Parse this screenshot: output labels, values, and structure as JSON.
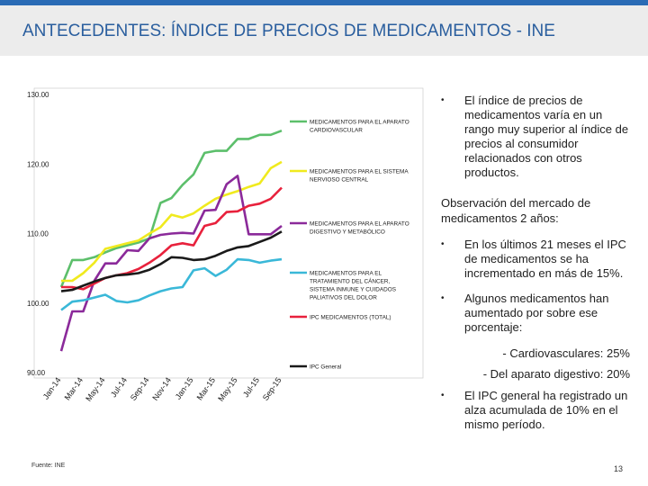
{
  "header": {
    "title": "ANTECEDENTES: ÍNDICE DE PRECIOS DE MEDICAMENTOS - INE"
  },
  "source": "Fuente: INE",
  "page_number": "13",
  "colors": {
    "header_bar": "#2a6bb5",
    "title": "#2a5e9e"
  },
  "right_panel": {
    "bullet_symbol": "•",
    "bullet1": "El índice de precios de medicamentos varía en un rango muy superior al índice de precios al consumidor relacionados con otros productos.",
    "observation": "Observación del mercado de medicamentos 2 años:",
    "bullet2": "En los últimos 21 meses el IPC de medicamentos se ha incrementado en más de 15%.",
    "bullet3": "Algunos medicamentos han aumentado por sobre ese porcentaje:",
    "sub1": "- Cardiovasculares: 25%",
    "sub2": "- Del aparato digestivo: 20%",
    "bullet4": "El IPC general ha registrado un alza acumulada de 10% en el mismo período."
  },
  "chart_data": {
    "type": "line",
    "x": [
      "Jan-14",
      "Feb-14",
      "Mar-14",
      "Apr-14",
      "May-14",
      "Jun-14",
      "Jul-14",
      "Aug-14",
      "Sep-14",
      "Oct-14",
      "Nov-14",
      "Dec-14",
      "Jan-15",
      "Feb-15",
      "Mar-15",
      "Apr-15",
      "May-15",
      "Jun-15",
      "Jul-15",
      "Aug-15",
      "Sep-15"
    ],
    "x_tick_labels": [
      "Jan-14",
      "Mar-14",
      "May-14",
      "Jul-14",
      "Sep-14",
      "Nov-14",
      "Jan-15",
      "Mar-15",
      "May-15",
      "Jul-15",
      "Sep-15"
    ],
    "ylim": [
      90,
      130
    ],
    "y_ticks": [
      "90.00",
      "100.00",
      "110.00",
      "120.00",
      "130.00"
    ],
    "y_tick_values": [
      90,
      100,
      110,
      120,
      130
    ],
    "grid": false,
    "legend_position": "right",
    "series": [
      {
        "name": "MEDICAMENTOS PARA EL APARATO CARDIOVASCULAR",
        "color": "#5cbf6b",
        "values": [
          102.3,
          106.2,
          106.2,
          106.6,
          107.3,
          107.9,
          108.3,
          108.7,
          109.3,
          114.4,
          115.1,
          117.0,
          118.5,
          121.6,
          121.9,
          121.9,
          123.6,
          123.6,
          124.2,
          124.2,
          124.8
        ]
      },
      {
        "name": "MEDICAMENTOS PARA EL SISTEMA NERVIOSO CENTRAL",
        "color": "#f0ea1e",
        "values": [
          103.2,
          103.2,
          104.3,
          105.8,
          107.8,
          108.2,
          108.6,
          109.0,
          110.0,
          110.9,
          112.7,
          112.3,
          112.9,
          114.0,
          115.0,
          115.6,
          116.1,
          116.7,
          117.2,
          119.4,
          120.3
        ]
      },
      {
        "name": "MEDICAMENTOS PARA EL APARATO DIGESTIVO Y METABÓLICO",
        "color": "#8b2a9a",
        "values": [
          93.1,
          98.8,
          98.8,
          103.2,
          105.7,
          105.7,
          107.6,
          107.5,
          109.3,
          109.8,
          110.0,
          110.1,
          110.0,
          113.3,
          113.4,
          117.1,
          118.3,
          109.9,
          109.9,
          109.9,
          111.1
        ]
      },
      {
        "name": "MEDICAMENTOS PARA EL TRATAMIENTO DEL CÁNCER, SISTEMA INMUNE Y CUIDADOS PALIATIVOS DEL DOLOR",
        "color": "#3ab8d8",
        "values": [
          99.0,
          100.2,
          100.4,
          100.8,
          101.2,
          100.3,
          100.1,
          100.4,
          101.1,
          101.7,
          102.1,
          102.3,
          104.7,
          105.0,
          103.9,
          104.8,
          106.3,
          106.2,
          105.8,
          106.1,
          106.3
        ]
      },
      {
        "name": "IPC MEDICAMENTOS (TOTAL)",
        "color": "#e8213c",
        "values": [
          102.3,
          102.3,
          102.0,
          102.8,
          103.6,
          104.0,
          104.3,
          104.9,
          105.8,
          106.9,
          108.3,
          108.6,
          108.3,
          111.1,
          111.5,
          113.1,
          113.2,
          114.0,
          114.3,
          115.0,
          116.6
        ]
      },
      {
        "name": "IPC General",
        "color": "#1a1a1a",
        "values": [
          101.7,
          101.9,
          102.5,
          103.1,
          103.6,
          104.0,
          104.1,
          104.3,
          104.8,
          105.6,
          106.6,
          106.5,
          106.2,
          106.3,
          106.8,
          107.5,
          108.0,
          108.2,
          108.8,
          109.4,
          110.3
        ]
      }
    ]
  }
}
